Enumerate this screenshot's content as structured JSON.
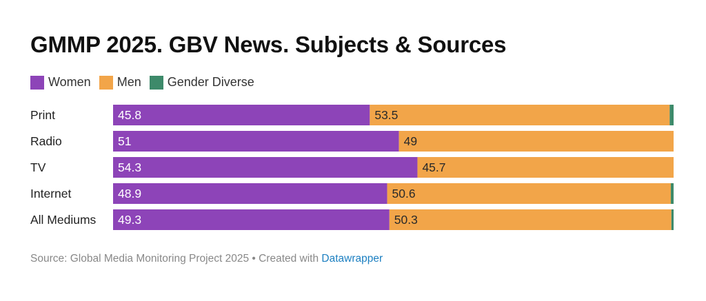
{
  "title": "GMMP 2025. GBV News. Subjects & Sources",
  "colors": {
    "Women": "#8d44b8",
    "Men": "#f2a549",
    "Gender Diverse": "#3d8a6a"
  },
  "footer": {
    "source": "Source: Global Media Monitoring Project 2025 • Created with ",
    "link": "Datawrapper"
  },
  "chart_data": {
    "type": "bar",
    "orientation": "horizontal",
    "stacked": true,
    "categories": [
      "Print",
      "Radio",
      "TV",
      "Internet",
      "All Mediums"
    ],
    "series": [
      {
        "name": "Women",
        "values": [
          45.8,
          51,
          54.3,
          48.9,
          49.3
        ]
      },
      {
        "name": "Men",
        "values": [
          53.5,
          49,
          45.7,
          50.6,
          50.3
        ]
      },
      {
        "name": "Gender Diverse",
        "values": [
          0.7,
          0,
          0,
          0.5,
          0.4
        ]
      }
    ],
    "xlim": [
      0,
      100
    ],
    "legend": "top-left",
    "grid": false
  }
}
